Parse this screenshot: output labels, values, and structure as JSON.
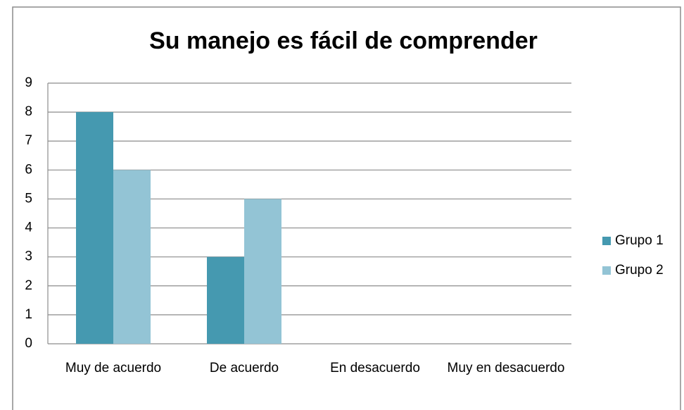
{
  "chart_data": {
    "type": "bar",
    "title": "Su manejo es fácil de comprender",
    "categories": [
      "Muy de acuerdo",
      "De acuerdo",
      "En desacuerdo",
      "Muy en desacuerdo"
    ],
    "series": [
      {
        "name": "Grupo 1",
        "color": "#4599b0",
        "values": [
          8,
          3,
          0,
          0
        ]
      },
      {
        "name": "Grupo 2",
        "color": "#93c4d5",
        "values": [
          6,
          5,
          0,
          0
        ]
      }
    ],
    "ylim": [
      0,
      9
    ],
    "yticks": [
      0,
      1,
      2,
      3,
      4,
      5,
      6,
      7,
      8,
      9
    ],
    "grid": true,
    "legend": "right"
  }
}
